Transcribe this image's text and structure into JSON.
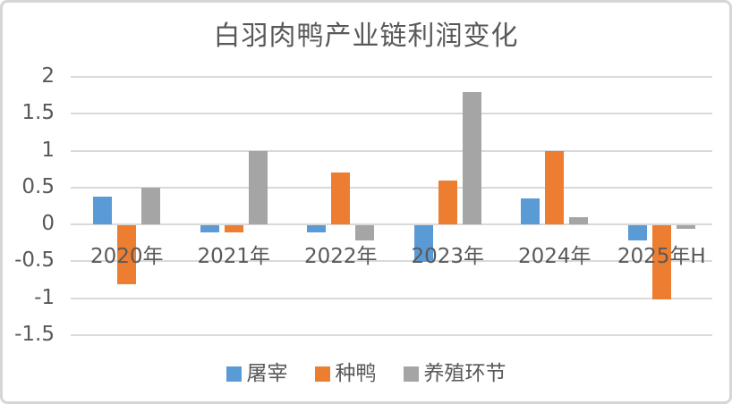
{
  "chart_data": {
    "type": "bar",
    "title": "白羽肉鸭产业链利润变化",
    "categories": [
      "2020年",
      "2021年",
      "2022年",
      "2023年",
      "2024年",
      "2025年H"
    ],
    "series": [
      {
        "name": "屠宰",
        "color": "#5B9BD5",
        "values": [
          0.38,
          -0.1,
          -0.1,
          -0.5,
          0.35,
          -0.2
        ]
      },
      {
        "name": "种鸭",
        "color": "#ED7D31",
        "values": [
          -0.8,
          -0.1,
          0.7,
          0.6,
          1.0,
          -1.0
        ]
      },
      {
        "name": "养殖环节",
        "color": "#A5A5A5",
        "values": [
          0.5,
          1.0,
          -0.2,
          1.8,
          0.1,
          -0.05
        ]
      }
    ],
    "xlabel": "",
    "ylabel": "",
    "ylim": [
      -1.5,
      2
    ],
    "ytick_step": 0.5,
    "yticks": [
      "2",
      "1.5",
      "1",
      "0.5",
      "0",
      "-0.5",
      "-1",
      "-1.5"
    ],
    "grid": "horizontal",
    "legend_position": "bottom",
    "colors": {
      "gridline": "#D9D9D9",
      "axis_text": "#595959",
      "title_text": "#595959",
      "background": "#FFFFFF",
      "frame_border": "#D6D6D6"
    }
  }
}
